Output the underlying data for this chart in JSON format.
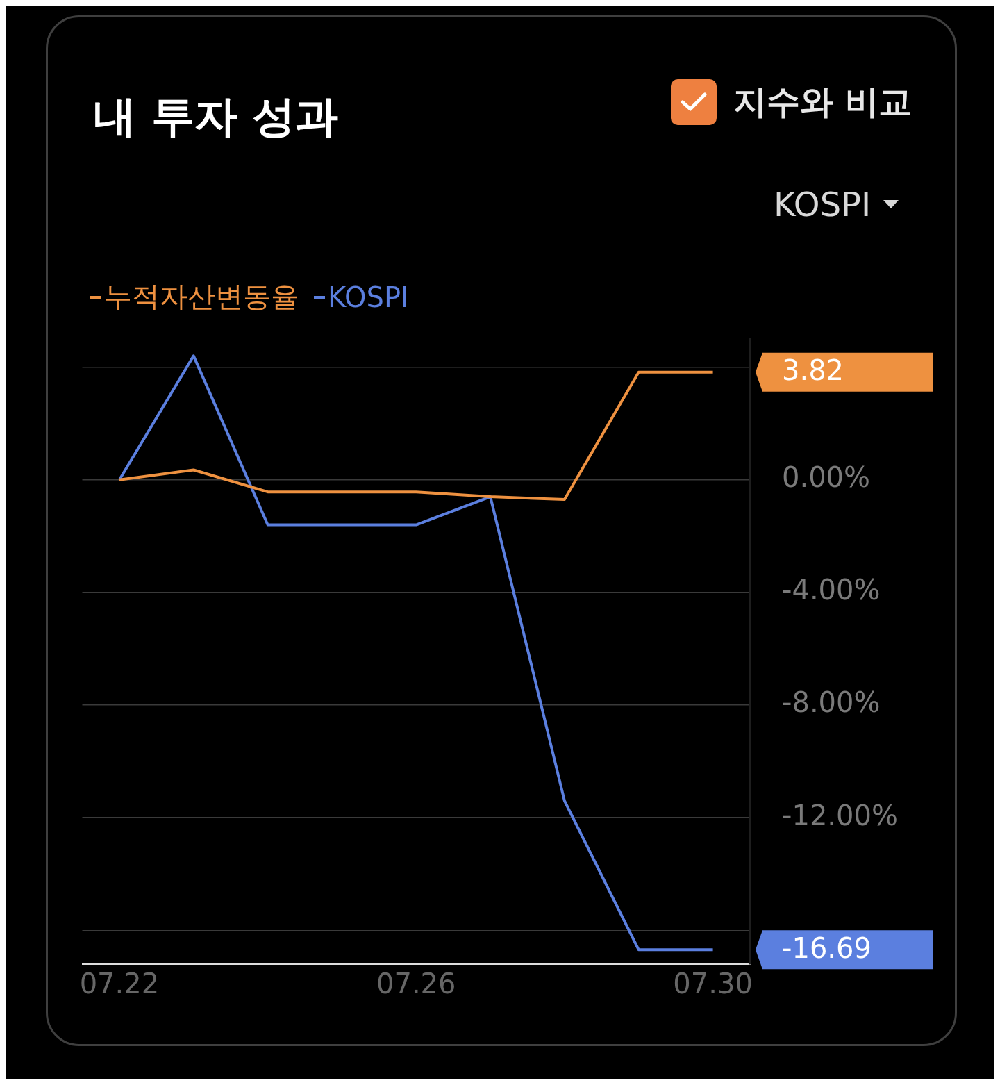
{
  "chart_data": {
    "type": "line",
    "title": "내 투자 성과",
    "categories": [
      "07.22",
      null,
      null,
      null,
      "07.26",
      null,
      null,
      null,
      "07.30"
    ],
    "series": [
      {
        "name": "누적자산변동율",
        "color": "#ee9140",
        "values": [
          0,
          0.35,
          -0.43,
          -0.43,
          -0.43,
          -0.6,
          -0.7,
          3.82,
          3.82
        ]
      },
      {
        "name": "KOSPI",
        "color": "#5b7fdf",
        "values": [
          0,
          4.4,
          -1.6,
          -1.6,
          -1.6,
          -0.6,
          -11.4,
          -16.69,
          -16.69
        ]
      }
    ],
    "ylim": [
      -17.2,
      5
    ],
    "yticks": [
      {
        "value": 4,
        "label": null
      },
      {
        "value": 0,
        "label": "0.00%"
      },
      {
        "value": -4,
        "label": "-4.00%"
      },
      {
        "value": -8,
        "label": "-8.00%"
      },
      {
        "value": -12,
        "label": "-12.00%"
      },
      {
        "value": -16,
        "label": null
      }
    ],
    "grid": "y",
    "legend": "top left",
    "marker": "none",
    "line_style": "solid",
    "annotations": [
      "지수와 비교",
      "KOSPI",
      {
        "text": "3.82",
        "x": "07.30",
        "y": 3.82
      },
      {
        "text": "-16.69",
        "x": "07.30",
        "y": -16.69
      }
    ]
  }
}
